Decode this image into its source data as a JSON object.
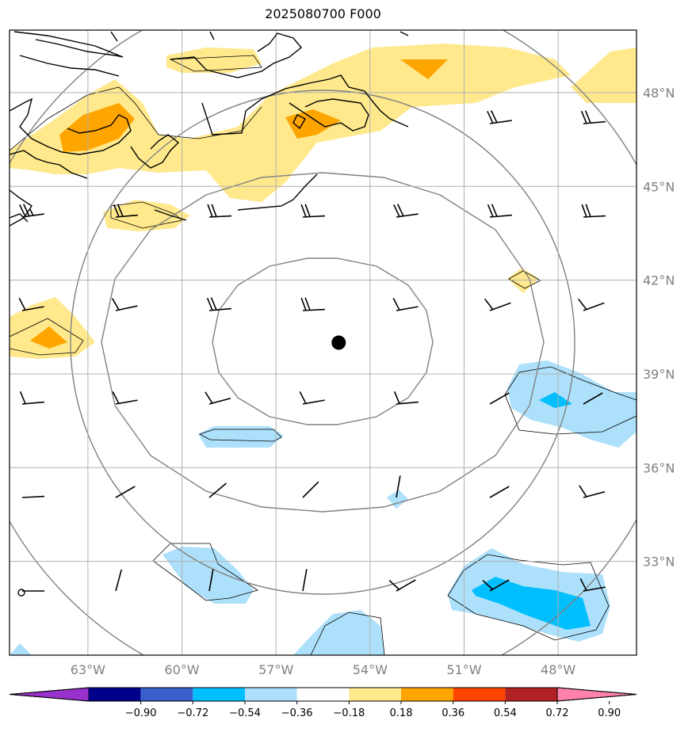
{
  "title": "2025080700 F000",
  "map": {
    "lon_range": [
      -65.5,
      -45.5
    ],
    "lat_range": [
      30.0,
      50.0
    ],
    "center_marker": {
      "lon": -55.0,
      "lat": 40.0
    },
    "lat_ticks": [
      {
        "lat": 48,
        "label": "48°N"
      },
      {
        "lat": 45,
        "label": "45°N"
      },
      {
        "lat": 42,
        "label": "42°N"
      },
      {
        "lat": 39,
        "label": "39°N"
      },
      {
        "lat": 36,
        "label": "36°N"
      },
      {
        "lat": 33,
        "label": "33°N"
      }
    ],
    "lon_ticks": [
      {
        "lon": -63,
        "label": "63°W"
      },
      {
        "lon": -60,
        "label": "60°W"
      },
      {
        "lon": -57,
        "label": "57°W"
      },
      {
        "lon": -54,
        "label": "54°W"
      },
      {
        "lon": -51,
        "label": "51°W"
      },
      {
        "lon": -48,
        "label": "48°W"
      }
    ],
    "grid_color": "#b0b0b0",
    "range_ring_color": "#808080"
  },
  "colorbar": {
    "colors": [
      "#9932CC",
      "#00008B",
      "#3A5FCD",
      "#00BFFF",
      "#ADE0FA",
      "#FFFFFF",
      "#FFE98C",
      "#FFA500",
      "#FF4500",
      "#B22222",
      "#FF82AB"
    ],
    "tick_labels": [
      "−0.90",
      "−0.72",
      "−0.54",
      "−0.36",
      "−0.18",
      "0.18",
      "0.36",
      "0.54",
      "0.72",
      "0.90"
    ]
  }
}
